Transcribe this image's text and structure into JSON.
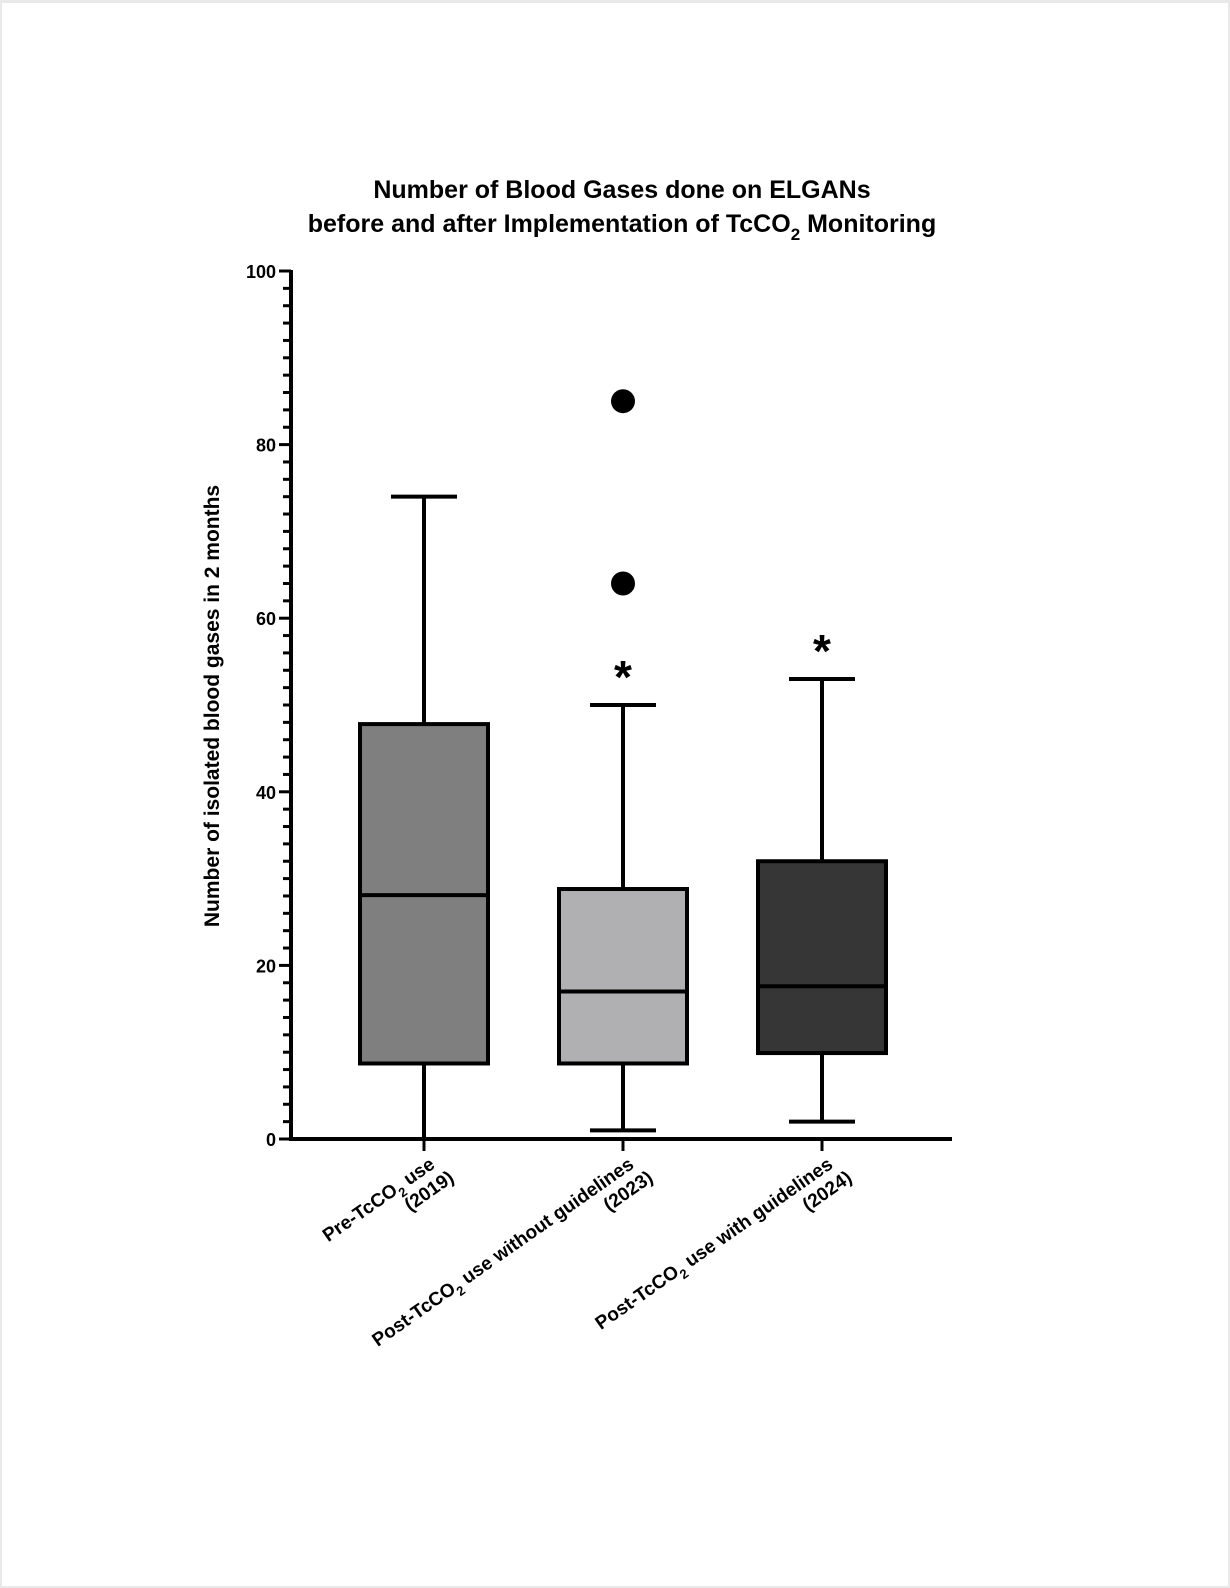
{
  "chart_data": {
    "type": "box",
    "title_line1": "Number of Blood Gases done on ELGANs",
    "title_line2": {
      "before": "before and after Implementation of TcCO",
      "sub": "2",
      "after": " Monitoring"
    },
    "ylabel": "Number of isolated blood gases in 2 months",
    "xlabel": "",
    "ylim": [
      0,
      100
    ],
    "y_ticks": [
      0,
      20,
      40,
      60,
      80,
      100
    ],
    "y_minor_step": 2,
    "grid": false,
    "categories": [
      {
        "line1": {
          "before": "Pre-TcCO",
          "sub": "2",
          "after": " use"
        },
        "line2": "(2019)"
      },
      {
        "line1": {
          "before": "Post-TcCO",
          "sub": "2",
          "after": " use without guidelines"
        },
        "line2": "(2023)"
      },
      {
        "line1": {
          "before": "Post-TcCO",
          "sub": "2",
          "after": " use with guidelines"
        },
        "line2": "(2024)"
      }
    ],
    "boxes": [
      {
        "whisker_low": 0,
        "q1": 8.7,
        "median": 28.1,
        "q3": 47.8,
        "whisker_high": 74,
        "outliers": [],
        "significance": "",
        "fill": "#7f7f7f"
      },
      {
        "whisker_low": 1,
        "q1": 8.7,
        "median": 17.0,
        "q3": 28.8,
        "whisker_high": 50,
        "outliers": [
          85,
          64
        ],
        "significance": "*",
        "fill": "#b0b0b2"
      },
      {
        "whisker_low": 2,
        "q1": 9.9,
        "median": 17.6,
        "q3": 32.0,
        "whisker_high": 53,
        "outliers": [],
        "significance": "*",
        "fill": "#363636"
      }
    ]
  }
}
